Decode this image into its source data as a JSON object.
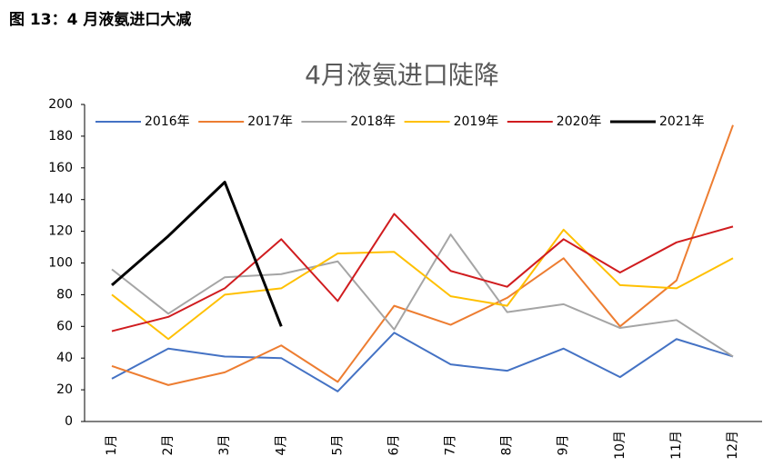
{
  "caption": "图 13：4 月液氨进口大减",
  "chart_data": {
    "type": "line",
    "title": "4月液氨进口陡降",
    "categories": [
      "1月",
      "2月",
      "3月",
      "4月",
      "5月",
      "6月",
      "7月",
      "8月",
      "9月",
      "10月",
      "11月",
      "12月"
    ],
    "series": [
      {
        "name": "2016年",
        "color": "#4472c4",
        "values": [
          27,
          46,
          41,
          40,
          19,
          56,
          36,
          32,
          46,
          28,
          52,
          41
        ]
      },
      {
        "name": "2017年",
        "color": "#ed7d31",
        "values": [
          35,
          23,
          31,
          48,
          25,
          73,
          61,
          78,
          103,
          60,
          89,
          187
        ]
      },
      {
        "name": "2018年",
        "color": "#a5a5a5",
        "values": [
          96,
          68,
          91,
          93,
          101,
          58,
          118,
          69,
          74,
          59,
          64,
          41
        ]
      },
      {
        "name": "2019年",
        "color": "#ffc000",
        "values": [
          80,
          52,
          80,
          84,
          106,
          107,
          79,
          73,
          121,
          86,
          84,
          103
        ]
      },
      {
        "name": "2020年",
        "color": "#d01c1f",
        "values": [
          57,
          66,
          84,
          115,
          76,
          131,
          95,
          85,
          115,
          94,
          113,
          123
        ]
      },
      {
        "name": "2021年",
        "color": "#000000",
        "values": [
          86,
          117,
          151,
          60,
          null,
          null,
          null,
          null,
          null,
          null,
          null,
          null
        ]
      }
    ],
    "ylim": [
      0,
      200
    ],
    "yticks": [
      0,
      20,
      40,
      60,
      80,
      100,
      120,
      140,
      160,
      180,
      200
    ],
    "grid": false,
    "legend": "top"
  }
}
